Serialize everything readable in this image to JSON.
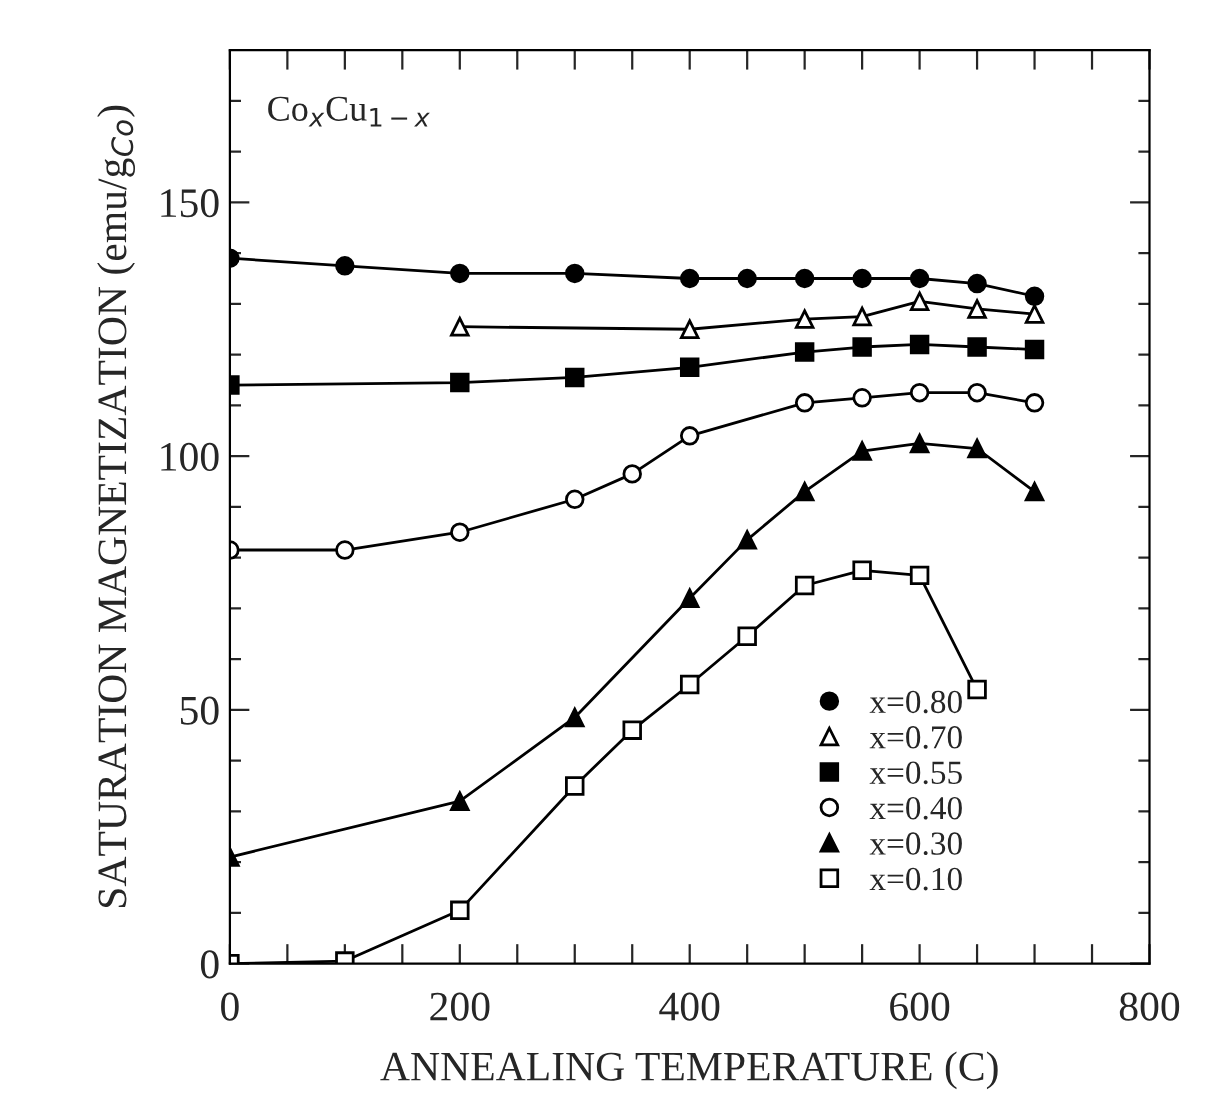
{
  "chart_data": {
    "type": "line",
    "xlabel": "ANNEALING TEMPERATURE (C)",
    "ylabel": "SATURATION MAGNETIZATION (emu/g$_{Co}$)",
    "annotations": [
      "Co$_{x}$Cu$_{1−x}$"
    ],
    "xlim": [
      0,
      800
    ],
    "ylim": [
      0,
      180
    ],
    "xticks": [
      0,
      {
        "value": 50,
        "label": null
      },
      {
        "value": 100,
        "label": null
      },
      {
        "value": 150,
        "label": null
      },
      200,
      {
        "value": 250,
        "label": null
      },
      {
        "value": 300,
        "label": null
      },
      {
        "value": 350,
        "label": null
      },
      400,
      {
        "value": 450,
        "label": null
      },
      {
        "value": 500,
        "label": null
      },
      {
        "value": 550,
        "label": null
      },
      600,
      {
        "value": 650,
        "label": null
      },
      {
        "value": 700,
        "label": null
      },
      {
        "value": 750,
        "label": null
      },
      800
    ],
    "yticks": [
      0,
      {
        "value": 10,
        "label": null
      },
      {
        "value": 20,
        "label": null
      },
      {
        "value": 30,
        "label": null
      },
      {
        "value": 40,
        "label": null
      },
      50,
      {
        "value": 60,
        "label": null
      },
      {
        "value": 70,
        "label": null
      },
      {
        "value": 80,
        "label": null
      },
      {
        "value": 90,
        "label": null
      },
      100,
      {
        "value": 110,
        "label": null
      },
      {
        "value": 120,
        "label": null
      },
      {
        "value": 130,
        "label": null
      },
      {
        "value": 140,
        "label": null
      },
      150,
      {
        "value": 160,
        "label": null
      },
      {
        "value": 170,
        "label": null
      }
    ],
    "grid": false,
    "legend": "bottom right",
    "line_style": "solid",
    "series": [
      {
        "name": "x=0.80",
        "color": "#000000",
        "marker": "circle",
        "x": [
          0,
          100,
          200,
          300,
          400,
          450,
          500,
          550,
          600,
          650,
          700
        ],
        "values": [
          139,
          137.5,
          136,
          136,
          135,
          135,
          135,
          135,
          135,
          134,
          131.5
        ]
      },
      {
        "name": "x=0.70",
        "color": "#000000",
        "marker": "triangle",
        "x": [
          200,
          400,
          500,
          550,
          600,
          650,
          700
        ],
        "values": [
          125.5,
          125,
          127,
          127.5,
          130.5,
          129,
          128
        ]
      },
      {
        "name": "x=0.55",
        "color": "#000000",
        "marker": "square",
        "x": [
          0,
          200,
          300,
          400,
          500,
          550,
          600,
          650,
          700
        ],
        "values": [
          114,
          114.5,
          115.5,
          117.5,
          120.5,
          121.5,
          122,
          121.5,
          121
        ]
      },
      {
        "name": "x=0.40",
        "color": "#000000",
        "marker": "circle",
        "x": [
          0,
          100,
          200,
          300,
          350,
          400,
          500,
          550,
          600,
          650,
          700
        ],
        "values": [
          81.5,
          81.5,
          85,
          91.5,
          96.5,
          104,
          110.5,
          111.5,
          112.5,
          112.5,
          110.5
        ]
      },
      {
        "name": "x=0.30",
        "color": "#000000",
        "marker": "triangle",
        "x": [
          0,
          200,
          300,
          400,
          450,
          500,
          550,
          600,
          650,
          700
        ],
        "values": [
          21,
          32,
          48.5,
          72,
          83.5,
          93,
          101,
          102.5,
          101.5,
          93
        ]
      },
      {
        "name": "x=0.10",
        "color": "#000000",
        "marker": "square",
        "x": [
          0,
          100,
          200,
          300,
          350,
          400,
          450,
          500,
          550,
          600,
          650
        ],
        "values": [
          0,
          0.5,
          10.5,
          35,
          46,
          55,
          64.5,
          74.5,
          77.5,
          76.5,
          54
        ]
      }
    ]
  }
}
